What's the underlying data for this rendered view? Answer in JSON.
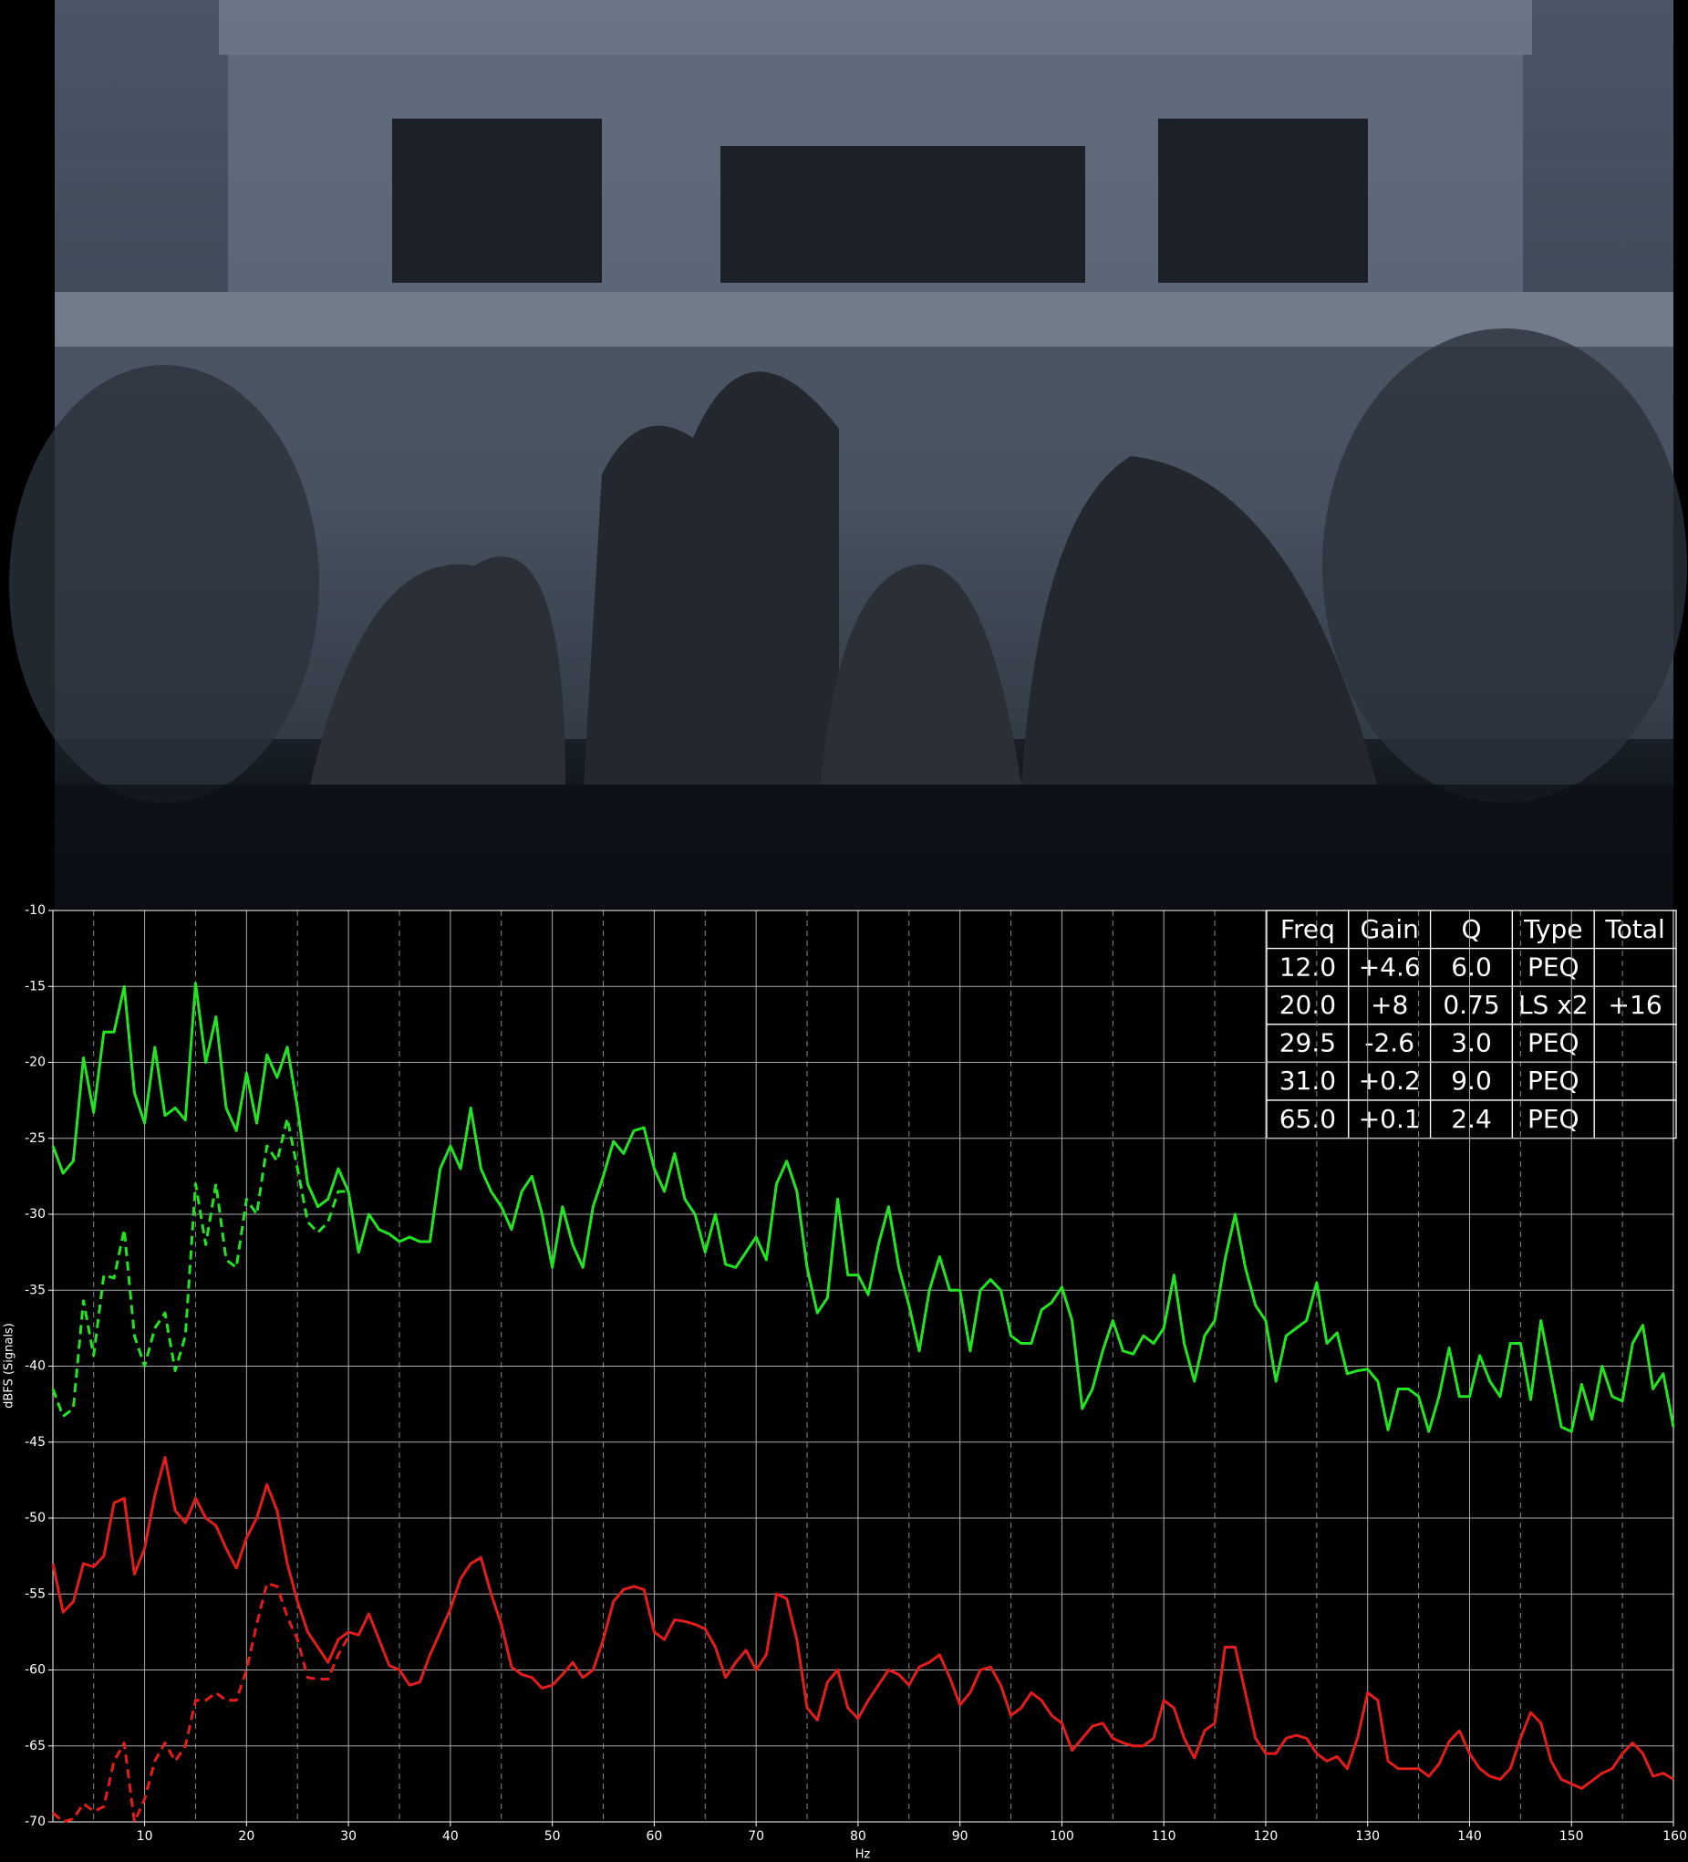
{
  "chart_data": {
    "type": "line",
    "xlabel": "Hz",
    "ylabel": "dBFS (Signals)",
    "xlim": [
      1,
      160
    ],
    "ylim": [
      -70,
      -10
    ],
    "xticks": [
      10,
      20,
      30,
      40,
      50,
      60,
      70,
      80,
      90,
      100,
      110,
      120,
      130,
      140,
      150,
      160
    ],
    "xminorticks": [
      5,
      15,
      25,
      35,
      45,
      55,
      65,
      75,
      85,
      95,
      105,
      115,
      125,
      135,
      145,
      155
    ],
    "yticks": [
      -10,
      -15,
      -20,
      -25,
      -30,
      -35,
      -40,
      -45,
      -50,
      -55,
      -60,
      -65,
      -70
    ],
    "grid": true,
    "background": "#000000",
    "x": [
      1,
      2,
      3,
      4,
      5,
      6,
      7,
      8,
      9,
      10,
      11,
      12,
      13,
      14,
      15,
      16,
      17,
      18,
      19,
      20,
      21,
      22,
      23,
      24,
      25,
      26,
      27,
      28,
      29,
      30,
      31,
      32,
      33,
      34,
      35,
      36,
      37,
      38,
      39,
      40,
      41,
      42,
      43,
      44,
      45,
      46,
      47,
      48,
      49,
      50,
      51,
      52,
      53,
      54,
      55,
      56,
      57,
      58,
      59,
      60,
      61,
      62,
      63,
      64,
      65,
      66,
      67,
      68,
      69,
      70,
      71,
      72,
      73,
      74,
      75,
      76,
      77,
      78,
      79,
      80,
      81,
      82,
      83,
      84,
      85,
      86,
      87,
      88,
      89,
      90,
      91,
      92,
      93,
      94,
      95,
      96,
      97,
      98,
      99,
      100,
      101,
      102,
      103,
      104,
      105,
      106,
      107,
      108,
      109,
      110,
      111,
      112,
      113,
      114,
      115,
      116,
      117,
      118,
      119,
      120,
      121,
      122,
      123,
      124,
      125,
      126,
      127,
      128,
      129,
      130,
      131,
      132,
      133,
      134,
      135,
      136,
      137,
      138,
      139,
      140,
      141,
      142,
      143,
      144,
      145,
      146,
      147,
      148,
      149,
      150,
      151,
      152,
      153,
      154,
      155,
      156,
      157,
      158,
      159,
      160
    ],
    "series": [
      {
        "color": "#22e422",
        "style": "solid",
        "values": [
          -25.5,
          -27.3,
          -26.5,
          -19.7,
          -23.3,
          -18,
          -18,
          -15,
          -22,
          -24,
          -19,
          -23.5,
          -23,
          -23.8,
          -14.8,
          -20,
          -17,
          -23,
          -24.5,
          -20.7,
          -24,
          -19.5,
          -21,
          -19,
          -23,
          -28,
          -29.5,
          -29,
          -27,
          -28.5,
          -32.5,
          -30,
          -31,
          -31.3,
          -31.8,
          -31.5,
          -31.8,
          -31.8,
          -27,
          -25.5,
          -27,
          -23,
          -27,
          -28.5,
          -29.5,
          -31,
          -28.5,
          -27.5,
          -30,
          -33.5,
          -29.5,
          -32,
          -33.5,
          -29.5,
          -27.5,
          -25.2,
          -26,
          -24.5,
          -24.3,
          -27,
          -28.5,
          -26,
          -29,
          -30,
          -32.5,
          -30,
          -33.3,
          -33.5,
          -32.5,
          -31.5,
          -33,
          -28,
          -26.5,
          -28.5,
          -33.5,
          -36.5,
          -35.5,
          -29,
          -34,
          -34,
          -35.3,
          -32,
          -29.5,
          -33.5,
          -36,
          -39,
          -35,
          -32.8,
          -35,
          -35,
          -39,
          -35,
          -34.3,
          -35,
          -38,
          -38.5,
          -38.5,
          -36.3,
          -35.8,
          -34.8,
          -37,
          -42.8,
          -41.5,
          -39,
          -37,
          -39,
          -39.2,
          -38,
          -38.5,
          -37.5,
          -34,
          -38.5,
          -41,
          -38,
          -37,
          -33,
          -30,
          -33.5,
          -36,
          -37,
          -41,
          -38,
          -37.5,
          -37,
          -34.5,
          -38.5,
          -37.8,
          -40.5,
          -40.3,
          -40.2,
          -41,
          -44.2,
          -41.5,
          -41.5,
          -42,
          -44.3,
          -42,
          -38.8,
          -42,
          -42,
          -39.3,
          -41,
          -42,
          -38.5,
          -38.5,
          -42.2,
          -37,
          -40.5,
          -44,
          -44.3,
          -41.2,
          -43.5,
          -40,
          -42,
          -42.3,
          -38.5,
          -37.3,
          -41.5,
          -40.5,
          -44
        ]
      },
      {
        "color": "#22e422",
        "style": "dashed",
        "x": [
          1,
          2,
          3,
          4,
          5,
          6,
          7,
          8,
          9,
          10,
          11,
          12,
          13,
          14,
          15,
          16,
          17,
          18,
          19,
          20,
          21,
          22,
          23,
          24,
          25,
          26,
          27,
          28,
          29,
          30
        ],
        "values": [
          -41.5,
          -43.3,
          -42.8,
          -35.7,
          -39.3,
          -34,
          -34.2,
          -31,
          -38,
          -40,
          -37.5,
          -36.5,
          -40.3,
          -38,
          -28,
          -32,
          -28,
          -33,
          -33.5,
          -29,
          -30,
          -25.5,
          -26.5,
          -23.7,
          -27,
          -30.5,
          -31.2,
          -30.5,
          -28.5,
          -28.5
        ]
      },
      {
        "color": "#e31c1c",
        "style": "solid",
        "values": [
          -53,
          -56.2,
          -55.5,
          -53,
          -53.2,
          -52.5,
          -49,
          -48.7,
          -53.7,
          -52,
          -48.5,
          -46,
          -49.5,
          -50.3,
          -48.7,
          -50,
          -50.5,
          -52,
          -53.3,
          -51.3,
          -50,
          -47.8,
          -49.5,
          -53,
          -55.5,
          -57.5,
          -58.5,
          -59.5,
          -58,
          -57.5,
          -57.7,
          -56.3,
          -58,
          -59.7,
          -60,
          -61,
          -60.8,
          -59,
          -57.5,
          -56,
          -54,
          -53,
          -52.6,
          -55,
          -57,
          -59.8,
          -60.3,
          -60.5,
          -61.2,
          -61,
          -60.3,
          -59.5,
          -60.5,
          -60,
          -58,
          -55.5,
          -54.7,
          -54.5,
          -54.7,
          -57.5,
          -58,
          -56.7,
          -56.8,
          -57,
          -57.3,
          -58.5,
          -60.5,
          -59.5,
          -58.7,
          -60,
          -59,
          -55,
          -55.3,
          -58,
          -62.5,
          -63.3,
          -60.8,
          -60,
          -62.5,
          -63.2,
          -62,
          -61,
          -60,
          -60.3,
          -61,
          -59.8,
          -59.5,
          -59,
          -60.5,
          -62.3,
          -61.5,
          -60,
          -59.8,
          -61,
          -63,
          -62.5,
          -61.5,
          -62,
          -63,
          -63.5,
          -65.3,
          -64.5,
          -63.7,
          -63.5,
          -64.5,
          -64.8,
          -65,
          -65,
          -64.5,
          -62,
          -62.5,
          -64.5,
          -65.8,
          -64,
          -63.5,
          -58.5,
          -58.5,
          -61.5,
          -64.5,
          -65.5,
          -65.5,
          -64.5,
          -64.3,
          -64.5,
          -65.5,
          -66,
          -65.7,
          -66.5,
          -64.5,
          -61.5,
          -62,
          -66,
          -66.5,
          -66.5,
          -66.5,
          -67,
          -66.2,
          -64.7,
          -64,
          -65.5,
          -66.5,
          -67,
          -67.2,
          -66.5,
          -64.5,
          -62.8,
          -63.5,
          -66,
          -67.2,
          -67.5,
          -67.8,
          -67.3,
          -66.8,
          -66.5,
          -65.5,
          -64.8,
          -65.5,
          -67,
          -66.8,
          -67.2
        ]
      },
      {
        "color": "#e31c1c",
        "style": "dashed",
        "x": [
          1,
          2,
          3,
          4,
          5,
          6,
          7,
          8,
          9,
          10,
          11,
          12,
          13,
          14,
          15,
          16,
          17,
          18,
          19,
          20,
          21,
          22,
          23,
          24,
          25,
          26,
          27,
          28,
          29,
          30
        ],
        "values": [
          -69.4,
          -70,
          -69.8,
          -68.8,
          -69.3,
          -69,
          -66,
          -64.8,
          -70,
          -68.5,
          -66,
          -64.8,
          -66,
          -65,
          -62,
          -62,
          -61.5,
          -62,
          -62,
          -60,
          -57,
          -54.3,
          -54.5,
          -56.5,
          -58,
          -60.5,
          -60.6,
          -60.6,
          -59,
          -57.8
        ]
      }
    ],
    "table": {
      "header": [
        "Freq",
        "Gain",
        "Q",
        "Type",
        "Total"
      ],
      "rows": [
        [
          "12.0",
          "+4.6",
          "6.0",
          "PEQ"
        ],
        [
          "20.0",
          "+8",
          "0.75",
          "LS x2",
          "+16"
        ],
        [
          "29.5",
          "-2.6",
          "3.0",
          "PEQ"
        ],
        [
          "31.0",
          "+0.2",
          "9.0",
          "PEQ"
        ],
        [
          "65.0",
          "+0.1",
          "2.4",
          "PEQ"
        ]
      ]
    }
  }
}
